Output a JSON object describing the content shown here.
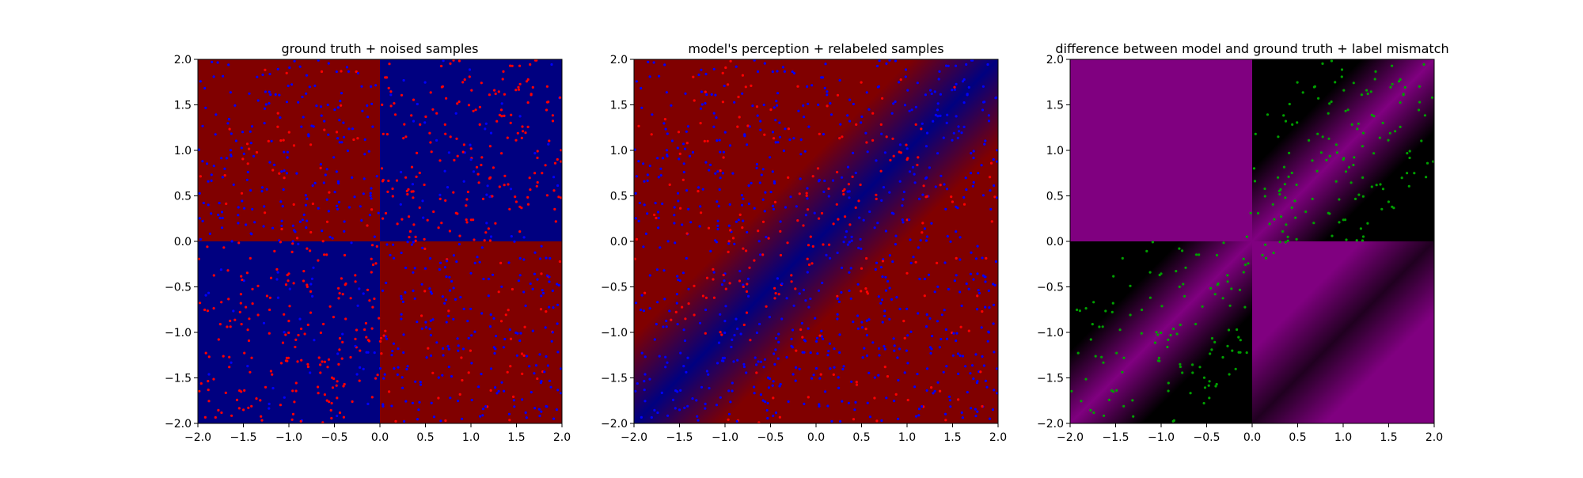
{
  "colors": {
    "red_region": "#800000",
    "blue_region": "#000080",
    "magenta_region": "#800080",
    "black_region": "#000000",
    "red_points": "#ff0000",
    "blue_points": "#0000ff",
    "green_points": "#00a000"
  },
  "chart_data": [
    {
      "type": "heatmap",
      "title": "ground truth + noised samples",
      "xlabel": "",
      "ylabel": "",
      "xlim": [
        -2.0,
        2.0
      ],
      "ylim": [
        -2.0,
        2.0
      ],
      "xticks": [
        "−2.0",
        "−1.5",
        "−1.0",
        "−0.5",
        "0.0",
        "0.5",
        "1.0",
        "1.5",
        "2.0"
      ],
      "yticks": [
        "−2.0",
        "−1.5",
        "−1.0",
        "−0.5",
        "0.0",
        "0.5",
        "1.0",
        "1.5",
        "2.0"
      ],
      "grid": false,
      "background": "quadrant-xor",
      "quadrant_colors": {
        "top_left": "red",
        "top_right": "blue",
        "bottom_left": "blue",
        "bottom_right": "red"
      },
      "series": [
        {
          "kind": "scatter",
          "color": "red",
          "approx_count": 500,
          "distribution": "predominantly in blue quadrants (x*y>0)"
        },
        {
          "kind": "scatter",
          "color": "blue",
          "approx_count": 500,
          "distribution": "predominantly in red quadrants (x*y<0)"
        }
      ]
    },
    {
      "type": "heatmap",
      "title": "model's perception + relabeled samples",
      "xlabel": "",
      "ylabel": "",
      "xlim": [
        -2.0,
        2.0
      ],
      "ylim": [
        -2.0,
        2.0
      ],
      "xticks": [
        "−2.0",
        "−1.5",
        "−1.0",
        "−0.5",
        "0.0",
        "0.5",
        "1.0",
        "1.5",
        "2.0"
      ],
      "yticks": [
        "−2.0",
        "−1.5",
        "−1.0",
        "−0.5",
        "0.0",
        "0.5",
        "1.0",
        "1.5",
        "2.0"
      ],
      "grid": false,
      "background": "diagonal-band",
      "band": {
        "direction": "y = x",
        "inner_color": "blue",
        "outer_color": "red",
        "half_width": 0.5
      },
      "series": [
        {
          "kind": "scatter",
          "color": "red",
          "approx_count": 500,
          "distribution": "clustered around y=x, mostly on the upper-left side of the band"
        },
        {
          "kind": "scatter",
          "color": "blue",
          "approx_count": 500,
          "distribution": "spread across the plane, denser near the diagonal band"
        }
      ]
    },
    {
      "type": "heatmap",
      "title": "difference between model and ground truth + label mismatch",
      "xlabel": "",
      "ylabel": "",
      "xlim": [
        -2.0,
        2.0
      ],
      "ylim": [
        -2.0,
        2.0
      ],
      "xticks": [
        "−2.0",
        "−1.5",
        "−1.0",
        "−0.5",
        "0.0",
        "0.5",
        "1.0",
        "1.5",
        "2.0"
      ],
      "yticks": [
        "−2.0",
        "−1.5",
        "−1.0",
        "−0.5",
        "0.0",
        "0.5",
        "1.0",
        "1.5",
        "2.0"
      ],
      "grid": false,
      "background": "difference",
      "difference": {
        "high_color": "magenta",
        "low_color": "black",
        "top_left": "magenta (uniform)",
        "top_right": "black with magenta diagonal band",
        "bottom_left": "black with magenta diagonal band",
        "bottom_right": "magenta with dark diagonal band"
      },
      "series": [
        {
          "kind": "scatter",
          "color": "green",
          "approx_count": 350,
          "distribution": "mismatched samples, along the diagonal band in top-right and bottom-left quadrants"
        }
      ]
    }
  ]
}
